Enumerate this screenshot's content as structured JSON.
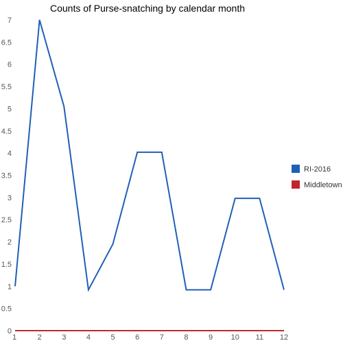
{
  "chart_data": {
    "type": "line",
    "title": "Counts of Purse-snatching by calendar month",
    "xlabel": "",
    "ylabel": "",
    "x": [
      1,
      2,
      3,
      4,
      5,
      6,
      7,
      8,
      9,
      10,
      11,
      12
    ],
    "x_tick_labels": [
      "1",
      "2",
      "3",
      "4",
      "5",
      "6",
      "7",
      "8",
      "9",
      "10",
      "11",
      "12"
    ],
    "xlim": [
      1,
      12
    ],
    "ylim": [
      0,
      7
    ],
    "y_tick_labels": [
      "0",
      "0.5",
      "1",
      "1.5",
      "2",
      "2.5",
      "3",
      "3.5",
      "4",
      "4.5",
      "5",
      "5.5",
      "6",
      "6.5",
      "7"
    ],
    "grid": false,
    "legend_position": "right",
    "series": [
      {
        "name": "RI-2016",
        "color": "#1f5fb5",
        "values": [
          1,
          7,
          5.05,
          0.92,
          1.95,
          4.02,
          4.02,
          0.92,
          0.92,
          2.98,
          2.98,
          0.92
        ]
      },
      {
        "name": "Middletown",
        "color": "#c0272d",
        "values": [
          0,
          0,
          0,
          0,
          0,
          0,
          0,
          0,
          0,
          0,
          0,
          0
        ]
      }
    ]
  }
}
